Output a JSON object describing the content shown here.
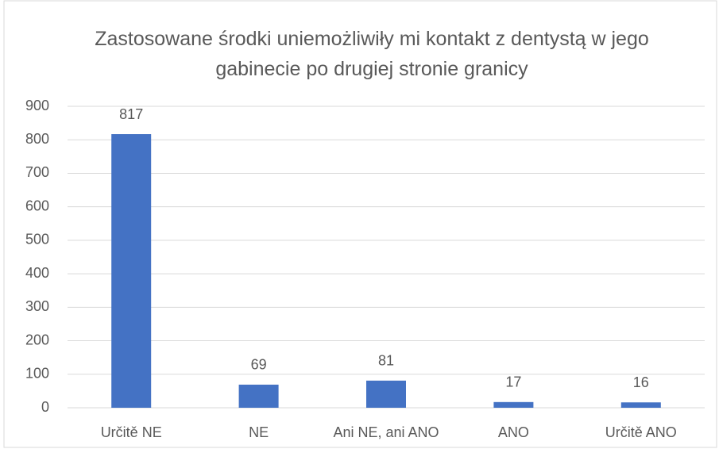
{
  "chart_data": {
    "type": "bar",
    "title": "Zastosowane środki uniemożliwiły mi kontakt z dentystą w jego gabinecie po drugiej stronie granicy",
    "categories": [
      "Určitě NE",
      "NE",
      "Ani NE, ani ANO",
      "ANO",
      "Určitě ANO"
    ],
    "values": [
      817,
      69,
      81,
      17,
      16
    ],
    "color": "#4472c4",
    "ylim": [
      0,
      900
    ],
    "yticks": [
      0,
      100,
      200,
      300,
      400,
      500,
      600,
      700,
      800,
      900
    ],
    "grid": true
  }
}
